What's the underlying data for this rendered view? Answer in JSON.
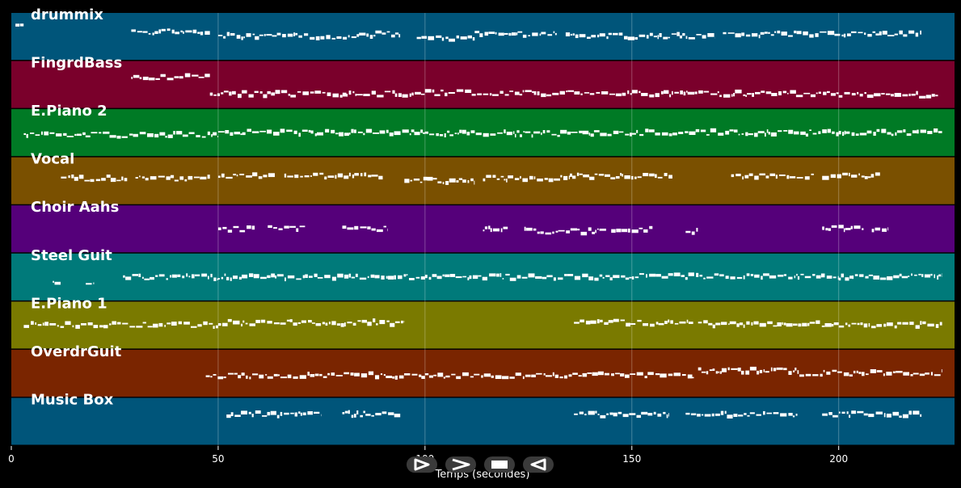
{
  "chart_data": {
    "type": "piano-roll",
    "title": "",
    "xlabel": "Temps (secondes)",
    "ylabel": "",
    "xlim": [
      0,
      228
    ],
    "x_ticks": [
      0,
      50,
      100,
      150,
      200
    ],
    "grid": true,
    "tracks": [
      {
        "name": "drummix",
        "color": "#00557a",
        "segments": [
          [
            1,
            3,
            0.3
          ],
          [
            29,
            48,
            0.4
          ],
          [
            50,
            88,
            0.5
          ],
          [
            88,
            94,
            0.45
          ],
          [
            98,
            112,
            0.55
          ],
          [
            112,
            132,
            0.45
          ],
          [
            134,
            170,
            0.5
          ],
          [
            172,
            220,
            0.45
          ]
        ]
      },
      {
        "name": "FingrdBass",
        "color": "#7a002b",
        "segments": [
          [
            29,
            48,
            0.35
          ],
          [
            48,
            100,
            0.7
          ],
          [
            100,
            150,
            0.68
          ],
          [
            150,
            200,
            0.7
          ],
          [
            200,
            224,
            0.72
          ]
        ]
      },
      {
        "name": "E.Piano 2",
        "color": "#007a25",
        "segments": [
          [
            3,
            50,
            0.55
          ],
          [
            50,
            100,
            0.5
          ],
          [
            100,
            150,
            0.52
          ],
          [
            150,
            200,
            0.5
          ],
          [
            200,
            225,
            0.5
          ]
        ]
      },
      {
        "name": "Vocal",
        "color": "#7a5000",
        "segments": [
          [
            12,
            28,
            0.45
          ],
          [
            30,
            48,
            0.45
          ],
          [
            50,
            64,
            0.4
          ],
          [
            66,
            90,
            0.4
          ],
          [
            95,
            112,
            0.5
          ],
          [
            114,
            135,
            0.45
          ],
          [
            135,
            160,
            0.4
          ],
          [
            174,
            194,
            0.4
          ],
          [
            196,
            210,
            0.4
          ]
        ]
      },
      {
        "name": "Choir Aahs",
        "color": "#55007a",
        "segments": [
          [
            50,
            59,
            0.5
          ],
          [
            62,
            71,
            0.5
          ],
          [
            80,
            91,
            0.5
          ],
          [
            114,
            120,
            0.5
          ],
          [
            124,
            144,
            0.55
          ],
          [
            145,
            155,
            0.5
          ],
          [
            163,
            166,
            0.55
          ],
          [
            196,
            206,
            0.5
          ],
          [
            208,
            212,
            0.5
          ]
        ]
      },
      {
        "name": "Steel Guit",
        "color": "#007a7a",
        "segments": [
          [
            10,
            12,
            0.6
          ],
          [
            18,
            20,
            0.6
          ],
          [
            27,
            50,
            0.5
          ],
          [
            50,
            100,
            0.5
          ],
          [
            100,
            150,
            0.5
          ],
          [
            150,
            200,
            0.48
          ],
          [
            200,
            225,
            0.5
          ]
        ]
      },
      {
        "name": "E.Piano 1",
        "color": "#7a7a00",
        "segments": [
          [
            3,
            50,
            0.5
          ],
          [
            50,
            95,
            0.45
          ],
          [
            136,
            165,
            0.45
          ],
          [
            166,
            200,
            0.48
          ],
          [
            200,
            225,
            0.5
          ]
        ]
      },
      {
        "name": "OverdrGuit",
        "color": "#7a2500",
        "segments": [
          [
            47,
            100,
            0.55
          ],
          [
            100,
            165,
            0.55
          ],
          [
            166,
            190,
            0.45
          ],
          [
            190,
            225,
            0.5
          ]
        ]
      },
      {
        "name": "Music Box",
        "color": "#00557a",
        "segments": [
          [
            52,
            75,
            0.35
          ],
          [
            80,
            94,
            0.35
          ],
          [
            136,
            159,
            0.35
          ],
          [
            163,
            190,
            0.35
          ],
          [
            196,
            220,
            0.35
          ]
        ]
      }
    ]
  },
  "controls": [
    {
      "name": "play-button",
      "icon": "play-icon"
    },
    {
      "name": "forward-button",
      "icon": "forward-icon"
    },
    {
      "name": "stop-button",
      "icon": "stop-icon"
    },
    {
      "name": "rewind-button",
      "icon": "rewind-icon"
    }
  ]
}
